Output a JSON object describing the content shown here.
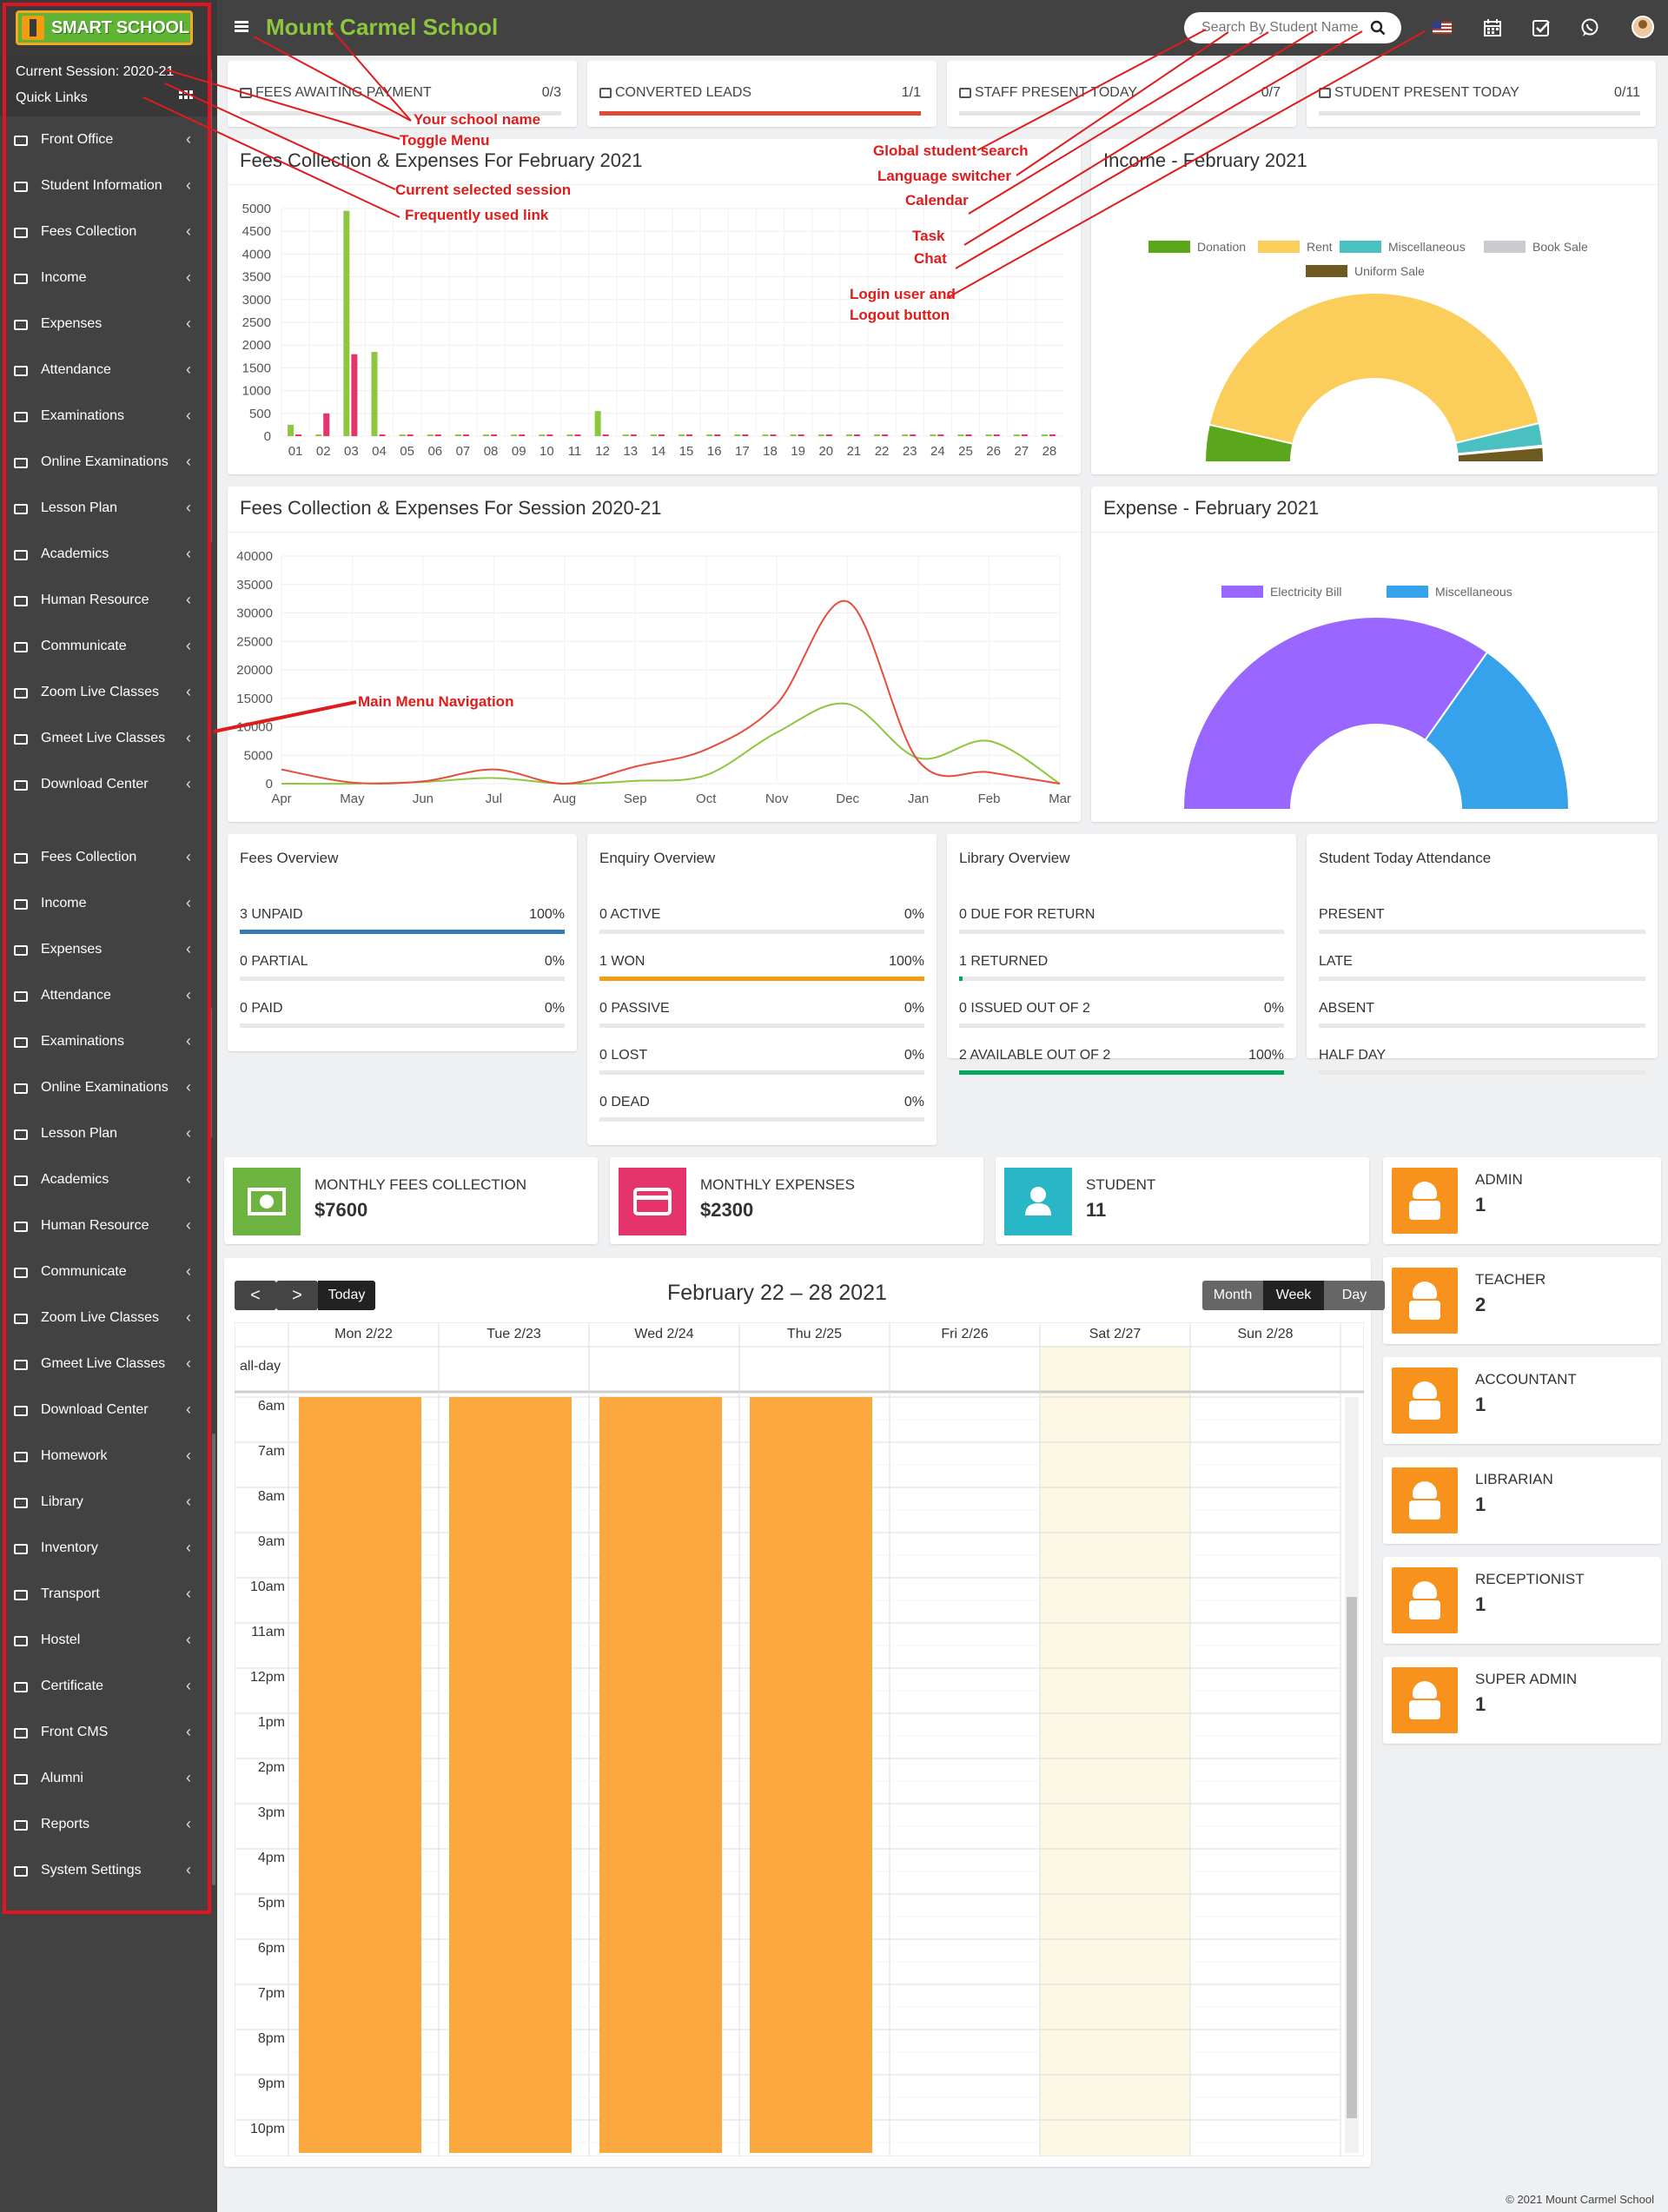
{
  "app": {
    "logo_text": "SMART SCHOOL",
    "school_name": "Mount Carmel School",
    "session_label": "Current Session: 2020-21",
    "quick_links_label": "Quick Links",
    "search_placeholder": "Search By Student Name",
    "icons": [
      "flag-us-icon",
      "calendar-icon",
      "task-check-icon",
      "whatsapp-chat-icon",
      "user-avatar"
    ],
    "colors": {
      "brand_green": "#8dc63f",
      "sidebar": "#424242",
      "accent_orange": "#f7931d",
      "danger_red": "#dd4b39"
    }
  },
  "sidebar": {
    "items": [
      {
        "label": "Front Office",
        "icon": "front-office-icon"
      },
      {
        "label": "Student Information",
        "icon": "student-info-icon"
      },
      {
        "label": "Fees Collection",
        "icon": "money-icon"
      },
      {
        "label": "Income",
        "icon": "dollar-icon"
      },
      {
        "label": "Expenses",
        "icon": "credit-card-icon"
      },
      {
        "label": "Attendance",
        "icon": "calendar-check-icon"
      },
      {
        "label": "Examinations",
        "icon": "map-icon"
      },
      {
        "label": "Online Examinations",
        "icon": "rss-icon"
      },
      {
        "label": "Lesson Plan",
        "icon": "list-icon"
      },
      {
        "label": "Academics",
        "icon": "graduation-cap-icon"
      },
      {
        "label": "Human Resource",
        "icon": "sitemap-icon"
      },
      {
        "label": "Communicate",
        "icon": "bullhorn-icon"
      },
      {
        "label": "Zoom Live Classes",
        "icon": "video-icon"
      },
      {
        "label": "Gmeet Live Classes",
        "icon": "video-icon"
      },
      {
        "label": "Download Center",
        "icon": "download-icon"
      },
      {
        "label": "Fees Collection",
        "icon": "money-icon"
      },
      {
        "label": "Income",
        "icon": "dollar-icon"
      },
      {
        "label": "Expenses",
        "icon": "credit-card-icon"
      },
      {
        "label": "Attendance",
        "icon": "calendar-check-icon"
      },
      {
        "label": "Examinations",
        "icon": "map-icon"
      },
      {
        "label": "Online Examinations",
        "icon": "rss-icon"
      },
      {
        "label": "Lesson Plan",
        "icon": "list-icon"
      },
      {
        "label": "Academics",
        "icon": "graduation-cap-icon"
      },
      {
        "label": "Human Resource",
        "icon": "sitemap-icon"
      },
      {
        "label": "Communicate",
        "icon": "bullhorn-icon"
      },
      {
        "label": "Zoom Live Classes",
        "icon": "video-icon"
      },
      {
        "label": "Gmeet Live Classes",
        "icon": "video-icon"
      },
      {
        "label": "Download Center",
        "icon": "download-icon"
      },
      {
        "label": "Homework",
        "icon": "flask-icon"
      },
      {
        "label": "Library",
        "icon": "book-icon"
      },
      {
        "label": "Inventory",
        "icon": "inventory-icon"
      },
      {
        "label": "Transport",
        "icon": "bus-icon"
      },
      {
        "label": "Hostel",
        "icon": "bed-icon"
      },
      {
        "label": "Certificate",
        "icon": "certificate-icon"
      },
      {
        "label": "Front CMS",
        "icon": "globe-icon"
      },
      {
        "label": "Alumni",
        "icon": "info-icon"
      },
      {
        "label": "Reports",
        "icon": "line-chart-icon"
      },
      {
        "label": "System Settings",
        "icon": "gears-icon"
      }
    ]
  },
  "info_boxes": [
    {
      "title": "FEES AWAITING PAYMENT",
      "value": "0/3",
      "progress": 0
    },
    {
      "title": "CONVERTED LEADS",
      "value": "1/1",
      "progress": 1
    },
    {
      "title": "STAFF PRESENT TODAY",
      "value": "0/7",
      "progress": 0
    },
    {
      "title": "STUDENT PRESENT TODAY",
      "value": "0/11",
      "progress": 0
    }
  ],
  "chart_data": [
    {
      "type": "bar",
      "title": "Fees Collection & Expenses For February 2021",
      "categories": [
        "01",
        "02",
        "03",
        "04",
        "05",
        "06",
        "07",
        "08",
        "09",
        "10",
        "11",
        "12",
        "13",
        "14",
        "15",
        "16",
        "17",
        "18",
        "19",
        "20",
        "21",
        "22",
        "23",
        "24",
        "25",
        "26",
        "27",
        "28"
      ],
      "yticks": [
        0,
        500,
        1000,
        1500,
        2000,
        2500,
        3000,
        3500,
        4000,
        4500,
        5000
      ],
      "ylim": [
        0,
        5000
      ],
      "series": [
        {
          "color": "#8dc63f",
          "values": [
            250,
            0,
            4950,
            1850,
            0,
            0,
            0,
            0,
            0,
            0,
            0,
            550,
            0,
            0,
            0,
            0,
            0,
            0,
            0,
            0,
            0,
            0,
            0,
            0,
            0,
            0,
            0,
            0
          ]
        },
        {
          "color": "#e5336c",
          "values": [
            0,
            500,
            1800,
            0,
            0,
            0,
            0,
            0,
            0,
            0,
            0,
            0,
            0,
            0,
            0,
            0,
            0,
            0,
            0,
            0,
            0,
            0,
            0,
            0,
            0,
            0,
            0,
            0
          ]
        }
      ]
    },
    {
      "type": "pie",
      "title": "Income - February 2021",
      "legend": [
        "Donation",
        "Rent",
        "Miscellaneous",
        "Book Sale",
        "Uniform Sale"
      ],
      "colors": [
        "#5aa71b",
        "#fbcd5a",
        "#4bc0c0",
        "#c9cbcf",
        "#6d5a1e"
      ],
      "values": [
        500,
        6000,
        300,
        20,
        200
      ],
      "half": true
    },
    {
      "type": "line",
      "title": "Fees Collection & Expenses For Session 2020-21",
      "categories": [
        "Apr",
        "May",
        "Jun",
        "Jul",
        "Aug",
        "Sep",
        "Oct",
        "Nov",
        "Dec",
        "Jan",
        "Feb",
        "Mar"
      ],
      "yticks": [
        0,
        5000,
        10000,
        15000,
        20000,
        25000,
        30000,
        35000,
        40000
      ],
      "ylim": [
        0,
        40000
      ],
      "series": [
        {
          "color": "#8dc63f",
          "values": [
            0,
            0,
            300,
            1000,
            0,
            500,
            1500,
            9000,
            14000,
            4500,
            7500,
            0
          ]
        },
        {
          "color": "#e74c3c",
          "values": [
            2500,
            200,
            400,
            2500,
            0,
            3000,
            6000,
            14000,
            32000,
            4000,
            2000,
            0
          ]
        }
      ]
    },
    {
      "type": "pie",
      "title": "Expense - February 2021",
      "legend": [
        "Electricity Bill",
        "Miscellaneous"
      ],
      "colors": [
        "#9966ff",
        "#36a2eb"
      ],
      "values": [
        1600,
        700
      ],
      "half": true
    }
  ],
  "overviews": {
    "fees": {
      "title": "Fees Overview",
      "rows": [
        {
          "label": "3 UNPAID",
          "value": "100%",
          "pct": 1,
          "color": "#337ab7"
        },
        {
          "label": "0 PARTIAL",
          "value": "0%",
          "pct": 0,
          "color": "#337ab7"
        },
        {
          "label": "0 PAID",
          "value": "0%",
          "pct": 0,
          "color": "#337ab7"
        }
      ]
    },
    "enquiry": {
      "title": "Enquiry Overview",
      "rows": [
        {
          "label": "0 ACTIVE",
          "value": "0%",
          "pct": 0,
          "color": "#f39c12"
        },
        {
          "label": "1 WON",
          "value": "100%",
          "pct": 1,
          "color": "#f39c12"
        },
        {
          "label": "0 PASSIVE",
          "value": "0%",
          "pct": 0,
          "color": "#f39c12"
        },
        {
          "label": "0 LOST",
          "value": "0%",
          "pct": 0,
          "color": "#f39c12"
        },
        {
          "label": "0 DEAD",
          "value": "0%",
          "pct": 0,
          "color": "#f39c12"
        }
      ]
    },
    "library": {
      "title": "Library Overview",
      "rows": [
        {
          "label": "0 DUE FOR RETURN",
          "value": "",
          "pct": 0,
          "color": "#00a65a"
        },
        {
          "label": "1 RETURNED",
          "value": "",
          "pct": 0.01,
          "color": "#00a65a"
        },
        {
          "label": "0 ISSUED OUT OF 2",
          "value": "0%",
          "pct": 0,
          "color": "#00a65a"
        },
        {
          "label": "2 AVAILABLE OUT OF 2",
          "value": "100%",
          "pct": 1,
          "color": "#00a65a"
        }
      ]
    },
    "attendance": {
      "title": "Student Today Attendance",
      "rows": [
        {
          "label": "PRESENT",
          "value": "",
          "pct": 0,
          "color": "#00a65a"
        },
        {
          "label": "LATE",
          "value": "",
          "pct": 0,
          "color": "#00a65a"
        },
        {
          "label": "ABSENT",
          "value": "",
          "pct": 0,
          "color": "#00a65a"
        },
        {
          "label": "HALF DAY",
          "value": "",
          "pct": 0,
          "color": "#00a65a"
        }
      ]
    }
  },
  "stats": [
    {
      "label": "MONTHLY FEES COLLECTION",
      "value": "$7600",
      "color": "#6cb33f",
      "icon": "money-icon"
    },
    {
      "label": "MONTHLY EXPENSES",
      "value": "$2300",
      "color": "#e5336c",
      "icon": "credit-card-icon"
    },
    {
      "label": "STUDENT",
      "value": "11",
      "color": "#29b6c6",
      "icon": "user-icon"
    }
  ],
  "roles": [
    {
      "label": "ADMIN",
      "value": "1"
    },
    {
      "label": "TEACHER",
      "value": "2"
    },
    {
      "label": "ACCOUNTANT",
      "value": "1"
    },
    {
      "label": "LIBRARIAN",
      "value": "1"
    },
    {
      "label": "RECEPTIONIST",
      "value": "1"
    },
    {
      "label": "SUPER ADMIN",
      "value": "1"
    }
  ],
  "calendar": {
    "prev": "<",
    "next": ">",
    "today": "Today",
    "title": "February 22 – 28 2021",
    "views": [
      "Month",
      "Week",
      "Day"
    ],
    "active_view": "Week",
    "days": [
      "Mon 2/22",
      "Tue 2/23",
      "Wed 2/24",
      "Thu 2/25",
      "Fri 2/26",
      "Sat 2/27",
      "Sun 2/28"
    ],
    "allday": "all-day",
    "times": [
      "6am",
      "7am",
      "8am",
      "9am",
      "10am",
      "11am",
      "12pm",
      "1pm",
      "2pm",
      "3pm",
      "4pm",
      "5pm",
      "6pm",
      "7pm",
      "8pm",
      "9pm",
      "10pm"
    ],
    "event_days": [
      "Mon 2/22",
      "Tue 2/23",
      "Wed 2/24",
      "Thu 2/25"
    ],
    "highlight_day": "Sat 2/27"
  },
  "annotations": [
    "Your school name",
    "Toggle Menu",
    "Current selected session",
    "Frequently used link",
    "Global student search",
    "Language switcher",
    "Calendar",
    "Task",
    "Chat",
    "Login user and",
    "Logout button",
    "Main Menu Navigation"
  ],
  "footer": "© 2021 Mount Carmel School"
}
